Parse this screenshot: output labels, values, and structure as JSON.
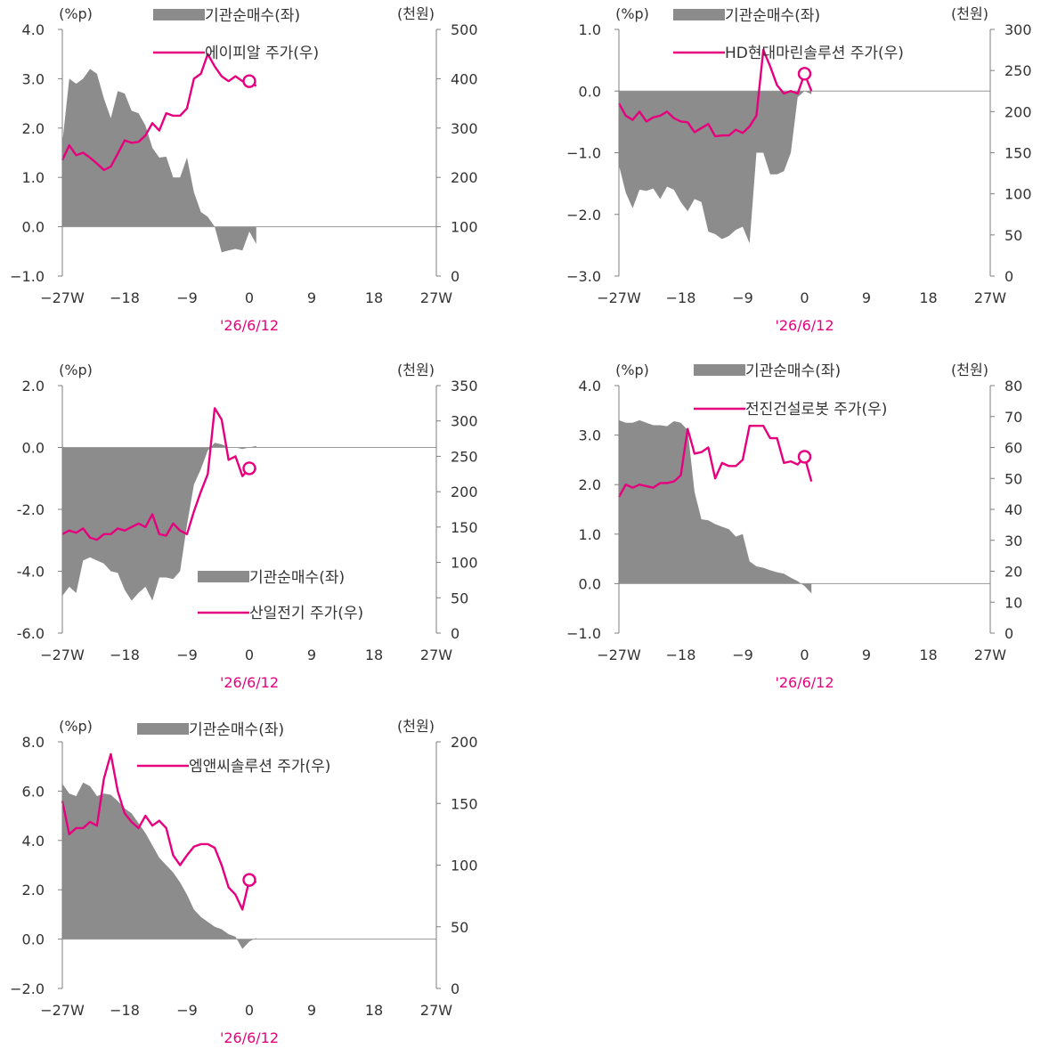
{
  "chart_data": [
    {
      "type": "area-line",
      "y_unit_left": "(%p)",
      "y_unit_right": "(천원)",
      "y_left_range": [
        -1.0,
        4.0
      ],
      "y_left_ticks": [
        "4.0",
        "3.0",
        "2.0",
        "1.0",
        "0.0",
        "−1.0"
      ],
      "y_right_range": [
        0,
        500
      ],
      "y_right_ticks": [
        "500",
        "400",
        "300",
        "200",
        "100",
        "0"
      ],
      "x_range": [
        -27,
        27
      ],
      "x_ticks": [
        "−27W",
        "−18",
        "−9",
        "0",
        "9",
        "18",
        "27W"
      ],
      "date_label": "'26/6/12",
      "legend_area": "기관순매수(좌)",
      "legend_line": "에이피알 주가(우)",
      "legend_position": "top",
      "area_color": "#8c8c8c",
      "line_color": "#e6007e",
      "area_series": {
        "name": "기관순매수(좌)",
        "x": [
          -27,
          -26,
          -25,
          -24,
          -23,
          -22,
          -21,
          -20,
          -19,
          -18,
          -17,
          -16,
          -15,
          -14,
          -13,
          -12,
          -11,
          -10,
          -9,
          -8,
          -7,
          -6,
          -5,
          -4,
          -3,
          -2,
          -1,
          0,
          1
        ],
        "values": [
          1.7,
          3.0,
          2.9,
          3.0,
          3.2,
          3.1,
          2.6,
          2.2,
          2.75,
          2.7,
          2.35,
          2.3,
          2.05,
          1.6,
          1.4,
          1.42,
          1.0,
          1.0,
          1.4,
          0.7,
          0.3,
          0.2,
          0.0,
          -0.52,
          -0.48,
          -0.45,
          -0.48,
          -0.1,
          -0.35
        ]
      },
      "line_series": {
        "name": "에이피알 주가(우)",
        "x": [
          -27,
          -26,
          -25,
          -24,
          -23,
          -22,
          -21,
          -20,
          -19,
          -18,
          -17,
          -16,
          -15,
          -14,
          -13,
          -12,
          -11,
          -10,
          -9,
          -8,
          -7,
          -6,
          -5,
          -4,
          -3,
          -2,
          -1,
          0,
          1
        ],
        "values": [
          235,
          265,
          245,
          250,
          240,
          228,
          215,
          222,
          248,
          275,
          270,
          272,
          285,
          310,
          295,
          330,
          325,
          325,
          340,
          400,
          410,
          450,
          425,
          405,
          395,
          405,
          395,
          395,
          385
        ]
      },
      "current_marker": {
        "x": 0,
        "value": 395
      }
    },
    {
      "type": "area-line",
      "y_unit_left": "(%p)",
      "y_unit_right": "(천원)",
      "y_left_range": [
        -3.0,
        1.0
      ],
      "y_left_ticks": [
        "1.0",
        "0.0",
        "−1.0",
        "−2.0",
        "−3.0"
      ],
      "y_right_range": [
        0,
        300
      ],
      "y_right_ticks": [
        "300",
        "250",
        "200",
        "150",
        "100",
        "50",
        "0"
      ],
      "x_range": [
        -27,
        27
      ],
      "x_ticks": [
        "−27W",
        "−18",
        "−9",
        "0",
        "9",
        "18",
        "27W"
      ],
      "date_label": "'26/6/12",
      "legend_area": "기관순매수(좌)",
      "legend_line": "HD현대마린솔루션 주가(우)",
      "legend_position": "top",
      "area_color": "#8c8c8c",
      "line_color": "#e6007e",
      "area_series": {
        "name": "기관순매수(좌)",
        "x": [
          -27,
          -26,
          -25,
          -24,
          -23,
          -22,
          -21,
          -20,
          -19,
          -18,
          -17,
          -16,
          -15,
          -14,
          -13,
          -12,
          -11,
          -10,
          -9,
          -8,
          -7,
          -6,
          -5,
          -4,
          -3,
          -2,
          -1,
          0,
          1
        ],
        "values": [
          -1.2,
          -1.65,
          -1.9,
          -1.6,
          -1.62,
          -1.58,
          -1.75,
          -1.55,
          -1.6,
          -1.8,
          -1.95,
          -1.75,
          -1.8,
          -2.28,
          -2.32,
          -2.4,
          -2.35,
          -2.25,
          -2.2,
          -2.47,
          -1.0,
          -1.0,
          -1.35,
          -1.35,
          -1.3,
          -1.0,
          -0.1,
          0.0,
          -0.05
        ]
      },
      "line_series": {
        "name": "HD현대마린솔루션 주가(우)",
        "x": [
          -27,
          -26,
          -25,
          -24,
          -23,
          -22,
          -21,
          -20,
          -19,
          -18,
          -17,
          -16,
          -15,
          -14,
          -13,
          -12,
          -11,
          -10,
          -9,
          -8,
          -7,
          -6,
          -5,
          -4,
          -3,
          -2,
          -1,
          0,
          1
        ],
        "values": [
          210,
          195,
          190,
          200,
          188,
          193,
          195,
          200,
          192,
          188,
          187,
          175,
          180,
          185,
          170,
          171,
          171,
          178,
          174,
          182,
          195,
          275,
          255,
          232,
          222,
          225,
          222,
          246,
          225
        ]
      },
      "current_marker": {
        "x": 0,
        "value": 246
      }
    },
    {
      "type": "area-line",
      "y_unit_left": "(%p)",
      "y_unit_right": "(천원)",
      "y_left_range": [
        -6.0,
        2.0
      ],
      "y_left_ticks": [
        "2.0",
        "0.0",
        "-2.0",
        "-4.0",
        "-6.0"
      ],
      "y_right_range": [
        0,
        350
      ],
      "y_right_ticks": [
        "350",
        "300",
        "250",
        "200",
        "150",
        "100",
        "50",
        "0"
      ],
      "x_range": [
        -27,
        27
      ],
      "x_ticks": [
        "−27W",
        "−18",
        "−9",
        "0",
        "9",
        "18",
        "27W"
      ],
      "date_label": "'26/6/12",
      "legend_area": "기관순매수(좌)",
      "legend_line": "산일전기 주가(우)",
      "legend_position": "bottom-center",
      "area_color": "#8c8c8c",
      "line_color": "#e6007e",
      "area_series": {
        "name": "기관순매수(좌)",
        "x": [
          -27,
          -26,
          -25,
          -24,
          -23,
          -22,
          -21,
          -20,
          -19,
          -18,
          -17,
          -16,
          -15,
          -14,
          -13,
          -12,
          -11,
          -10,
          -9,
          -8,
          -7,
          -6,
          -5,
          -4,
          -3,
          -2,
          -1,
          0,
          1
        ],
        "values": [
          -4.8,
          -4.5,
          -4.7,
          -3.65,
          -3.55,
          -3.65,
          -3.75,
          -4.0,
          -4.05,
          -4.6,
          -4.95,
          -4.7,
          -4.5,
          -4.95,
          -4.2,
          -4.2,
          -4.25,
          -4.0,
          -2.5,
          -1.2,
          -0.7,
          -0.1,
          0.15,
          0.1,
          0.0,
          0.0,
          -0.05,
          0.0,
          0.05
        ]
      },
      "line_series": {
        "name": "산일전기 주가(우)",
        "x": [
          -27,
          -26,
          -25,
          -24,
          -23,
          -22,
          -21,
          -20,
          -19,
          -18,
          -17,
          -16,
          -15,
          -14,
          -13,
          -12,
          -11,
          -10,
          -9,
          -8,
          -7,
          -6,
          -5,
          -4,
          -3,
          -2,
          -1,
          0,
          1
        ],
        "values": [
          140,
          145,
          142,
          148,
          135,
          132,
          140,
          140,
          148,
          145,
          150,
          155,
          150,
          168,
          140,
          138,
          155,
          145,
          140,
          172,
          200,
          225,
          318,
          302,
          245,
          250,
          222,
          233,
          232
        ]
      },
      "current_marker": {
        "x": 0,
        "value": 233
      }
    },
    {
      "type": "area-line",
      "y_unit_left": "(%p)",
      "y_unit_right": "(천원)",
      "y_left_range": [
        -1.0,
        4.0
      ],
      "y_left_ticks": [
        "4.0",
        "3.0",
        "2.0",
        "1.0",
        "0.0",
        "−1.0"
      ],
      "y_right_range": [
        0,
        80
      ],
      "y_right_ticks": [
        "80",
        "70",
        "60",
        "50",
        "40",
        "30",
        "20",
        "10",
        "0"
      ],
      "x_range": [
        -27,
        27
      ],
      "x_ticks": [
        "−27W",
        "−18",
        "−9",
        "0",
        "9",
        "18",
        "27W"
      ],
      "date_label": "'26/6/12",
      "legend_area": "기관순매수(좌)",
      "legend_line": "전진건설로봇 주가(우)",
      "legend_position": "top",
      "area_color": "#8c8c8c",
      "line_color": "#e6007e",
      "area_series": {
        "name": "기관순매수(좌)",
        "x": [
          -27,
          -26,
          -25,
          -24,
          -23,
          -22,
          -21,
          -20,
          -19,
          -18,
          -17,
          -16,
          -15,
          -14,
          -13,
          -12,
          -11,
          -10,
          -9,
          -8,
          -7,
          -6,
          -5,
          -4,
          -3,
          -2,
          -1,
          0,
          1
        ],
        "values": [
          3.3,
          3.25,
          3.25,
          3.3,
          3.25,
          3.2,
          3.2,
          3.18,
          3.28,
          3.25,
          3.1,
          1.85,
          1.3,
          1.28,
          1.2,
          1.15,
          1.1,
          0.95,
          1.0,
          0.45,
          0.35,
          0.32,
          0.27,
          0.23,
          0.2,
          0.12,
          0.05,
          -0.05,
          -0.2
        ]
      },
      "line_series": {
        "name": "전진건설로봇 주가(우)",
        "x": [
          -27,
          -26,
          -25,
          -24,
          -23,
          -22,
          -21,
          -20,
          -19,
          -18,
          -17,
          -16,
          -15,
          -14,
          -13,
          -12,
          -11,
          -10,
          -9,
          -8,
          -7,
          -6,
          -5,
          -4,
          -3,
          -2,
          -1,
          0,
          1
        ],
        "values": [
          44,
          48,
          47,
          48,
          47.5,
          47,
          48.5,
          48.5,
          49,
          51,
          66,
          58,
          58.5,
          60,
          50,
          55,
          54,
          54,
          56,
          67,
          67,
          67,
          63,
          63,
          55,
          55.5,
          54.5,
          57,
          49
        ]
      },
      "current_marker": {
        "x": 0,
        "value": 57
      }
    },
    {
      "type": "area-line",
      "y_unit_left": "(%p)",
      "y_unit_right": "(천원)",
      "y_left_range": [
        -2.0,
        8.0
      ],
      "y_left_ticks": [
        "8.0",
        "6.0",
        "4.0",
        "2.0",
        "0.0",
        "−2.0"
      ],
      "y_right_range": [
        0,
        200
      ],
      "y_right_ticks": [
        "200",
        "150",
        "100",
        "50",
        "0"
      ],
      "x_range": [
        -27,
        27
      ],
      "x_ticks": [
        "−27W",
        "−18",
        "−9",
        "0",
        "9",
        "18",
        "27W"
      ],
      "date_label": "'26/6/12",
      "legend_area": "기관순매수(좌)",
      "legend_line": "엠앤씨솔루션 주가(우)",
      "legend_position": "top",
      "area_color": "#8c8c8c",
      "line_color": "#e6007e",
      "area_series": {
        "name": "기관순매수(좌)",
        "x": [
          -27,
          -26,
          -25,
          -24,
          -23,
          -22,
          -21,
          -20,
          -19,
          -18,
          -17,
          -16,
          -15,
          -14,
          -13,
          -12,
          -11,
          -10,
          -9,
          -8,
          -7,
          -6,
          -5,
          -4,
          -3,
          -2,
          -1,
          0,
          1
        ],
        "values": [
          6.3,
          5.9,
          5.8,
          6.35,
          6.2,
          5.8,
          5.9,
          5.85,
          5.6,
          5.3,
          5.1,
          4.7,
          4.3,
          3.8,
          3.3,
          3.0,
          2.7,
          2.3,
          1.8,
          1.2,
          0.9,
          0.7,
          0.5,
          0.4,
          0.2,
          0.1,
          -0.4,
          -0.1,
          0.05
        ]
      },
      "line_series": {
        "name": "엠앤씨솔루션 주가(우)",
        "x": [
          -27,
          -26,
          -25,
          -24,
          -23,
          -22,
          -21,
          -20,
          -19,
          -18,
          -17,
          -16,
          -15,
          -14,
          -13,
          -12,
          -11,
          -10,
          -9,
          -8,
          -7,
          -6,
          -5,
          -4,
          -3,
          -2,
          -1,
          0,
          1
        ],
        "values": [
          152,
          125,
          130,
          130,
          135,
          132,
          170,
          190,
          160,
          142,
          135,
          130,
          140,
          132,
          136,
          130,
          108,
          100,
          108,
          115,
          117,
          117,
          114,
          100,
          82,
          76,
          64,
          88,
          86
        ]
      },
      "current_marker": {
        "x": 0,
        "value": 88
      }
    }
  ]
}
